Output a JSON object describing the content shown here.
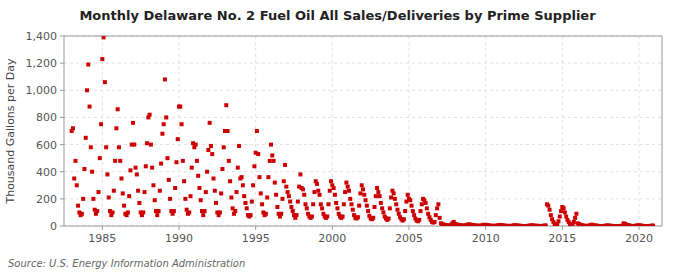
{
  "chart_data": {
    "type": "scatter",
    "title": "Monthly Delaware No. 2 Fuel Oil All Sales/Deliveries by Prime Supplier",
    "ylabel": "Thousand Gallons per Day",
    "annotations": [
      "Source: U.S. Energy Information Administration"
    ],
    "color": "#cc0000",
    "marker": "square",
    "grid": true,
    "xlim": [
      1982.5,
      2021.5
    ],
    "ylim": [
      0,
      1400
    ],
    "xticks": [
      1985,
      1990,
      1995,
      2000,
      2005,
      2010,
      2015,
      2020
    ],
    "yticks": [
      0,
      200,
      400,
      600,
      800,
      {
        "value": 1000,
        "label": "1,000"
      },
      {
        "value": 1200,
        "label": "1,200"
      },
      {
        "value": 1400,
        "label": "1,400"
      }
    ],
    "x": [
      1983.0,
      1983.083,
      1983.167,
      1983.25,
      1983.333,
      1983.417,
      1983.5,
      1983.583,
      1983.667,
      1983.75,
      1983.833,
      1983.917,
      1984.0,
      1984.083,
      1984.167,
      1984.25,
      1984.333,
      1984.417,
      1984.5,
      1984.583,
      1984.667,
      1984.75,
      1984.833,
      1984.917,
      1985.0,
      1985.083,
      1985.167,
      1985.25,
      1985.333,
      1985.417,
      1985.5,
      1985.583,
      1985.667,
      1985.75,
      1985.833,
      1985.917,
      1986.0,
      1986.083,
      1986.167,
      1986.25,
      1986.333,
      1986.417,
      1986.5,
      1986.583,
      1986.667,
      1986.75,
      1986.833,
      1986.917,
      1987.0,
      1987.083,
      1987.167,
      1987.25,
      1987.333,
      1987.417,
      1987.5,
      1987.583,
      1987.667,
      1987.75,
      1987.833,
      1987.917,
      1988.0,
      1988.083,
      1988.167,
      1988.25,
      1988.333,
      1988.417,
      1988.5,
      1988.583,
      1988.667,
      1988.75,
      1988.833,
      1988.917,
      1989.0,
      1989.083,
      1989.167,
      1989.25,
      1989.333,
      1989.417,
      1989.5,
      1989.583,
      1989.667,
      1989.75,
      1989.833,
      1989.917,
      1990.0,
      1990.083,
      1990.167,
      1990.25,
      1990.333,
      1990.417,
      1990.5,
      1990.583,
      1990.667,
      1990.75,
      1990.833,
      1990.917,
      1991.0,
      1991.083,
      1991.167,
      1991.25,
      1991.333,
      1991.417,
      1991.5,
      1991.583,
      1991.667,
      1991.75,
      1991.833,
      1991.917,
      1992.0,
      1992.083,
      1992.167,
      1992.25,
      1992.333,
      1992.417,
      1992.5,
      1992.583,
      1992.667,
      1992.75,
      1992.833,
      1992.917,
      1993.0,
      1993.083,
      1993.167,
      1993.25,
      1993.333,
      1993.417,
      1993.5,
      1993.583,
      1993.667,
      1993.75,
      1993.833,
      1993.917,
      1994.0,
      1994.083,
      1994.167,
      1994.25,
      1994.333,
      1994.417,
      1994.5,
      1994.583,
      1994.667,
      1994.75,
      1994.833,
      1994.917,
      1995.0,
      1995.083,
      1995.167,
      1995.25,
      1995.333,
      1995.417,
      1995.5,
      1995.583,
      1995.667,
      1995.75,
      1995.833,
      1995.917,
      1996.0,
      1996.083,
      1996.167,
      1996.25,
      1996.333,
      1996.417,
      1996.5,
      1996.583,
      1996.667,
      1996.75,
      1996.833,
      1996.917,
      1997.0,
      1997.083,
      1997.167,
      1997.25,
      1997.333,
      1997.417,
      1997.5,
      1997.583,
      1997.667,
      1997.75,
      1997.833,
      1997.917,
      1998.0,
      1998.083,
      1998.167,
      1998.25,
      1998.333,
      1998.417,
      1998.5,
      1998.583,
      1998.667,
      1998.75,
      1998.833,
      1998.917,
      1999.0,
      1999.083,
      1999.167,
      1999.25,
      1999.333,
      1999.417,
      1999.5,
      1999.583,
      1999.667,
      1999.75,
      1999.833,
      1999.917,
      2000.0,
      2000.083,
      2000.167,
      2000.25,
      2000.333,
      2000.417,
      2000.5,
      2000.583,
      2000.667,
      2000.75,
      2000.833,
      2000.917,
      2001.0,
      2001.083,
      2001.167,
      2001.25,
      2001.333,
      2001.417,
      2001.5,
      2001.583,
      2001.667,
      2001.75,
      2001.833,
      2001.917,
      2002.0,
      2002.083,
      2002.167,
      2002.25,
      2002.333,
      2002.417,
      2002.5,
      2002.583,
      2002.667,
      2002.75,
      2002.833,
      2002.917,
      2003.0,
      2003.083,
      2003.167,
      2003.25,
      2003.333,
      2003.417,
      2003.5,
      2003.583,
      2003.667,
      2003.75,
      2003.833,
      2003.917,
      2004.0,
      2004.083,
      2004.167,
      2004.25,
      2004.333,
      2004.417,
      2004.5,
      2004.583,
      2004.667,
      2004.75,
      2004.833,
      2004.917,
      2005.0,
      2005.083,
      2005.167,
      2005.25,
      2005.333,
      2005.417,
      2005.5,
      2005.583,
      2005.667,
      2005.75,
      2005.833,
      2005.917,
      2006.0,
      2006.083,
      2006.167,
      2006.25,
      2006.333,
      2006.417,
      2006.5,
      2006.583,
      2006.667,
      2006.75,
      2006.833,
      2006.917,
      2007.0,
      2007.083,
      2007.167,
      2007.25,
      2007.333,
      2007.417,
      2007.5,
      2007.583,
      2007.667,
      2007.75,
      2007.833,
      2007.917,
      2008.0,
      2008.083,
      2008.167,
      2008.25,
      2008.333,
      2008.417,
      2008.5,
      2008.583,
      2008.667,
      2008.75,
      2008.833,
      2008.917,
      2009.0,
      2009.083,
      2009.167,
      2009.25,
      2009.333,
      2009.417,
      2009.5,
      2009.583,
      2009.667,
      2009.75,
      2009.833,
      2009.917,
      2010.0,
      2010.083,
      2010.167,
      2010.25,
      2010.333,
      2010.417,
      2010.5,
      2010.583,
      2010.667,
      2010.75,
      2010.833,
      2010.917,
      2011.0,
      2011.083,
      2011.167,
      2011.25,
      2011.333,
      2011.417,
      2011.5,
      2011.583,
      2011.667,
      2011.75,
      2011.833,
      2011.917,
      2012.0,
      2012.083,
      2012.167,
      2012.25,
      2012.333,
      2012.417,
      2012.5,
      2012.583,
      2012.667,
      2012.75,
      2012.833,
      2012.917,
      2013.0,
      2013.083,
      2013.167,
      2013.25,
      2013.333,
      2013.417,
      2013.5,
      2013.583,
      2013.667,
      2013.75,
      2013.833,
      2013.917,
      2014.0,
      2014.083,
      2014.167,
      2014.25,
      2014.333,
      2014.417,
      2014.5,
      2014.583,
      2014.667,
      2014.75,
      2014.833,
      2014.917,
      2015.0,
      2015.083,
      2015.167,
      2015.25,
      2015.333,
      2015.417,
      2015.5,
      2015.583,
      2015.667,
      2015.75,
      2015.833,
      2015.917,
      2016.0,
      2016.083,
      2016.167,
      2016.25,
      2016.333,
      2016.417,
      2016.5,
      2016.583,
      2016.667,
      2016.75,
      2016.833,
      2016.917,
      2017.0,
      2017.083,
      2017.167,
      2017.25,
      2017.333,
      2017.417,
      2017.5,
      2017.583,
      2017.667,
      2017.75,
      2017.833,
      2017.917,
      2018.0,
      2018.083,
      2018.167,
      2018.25,
      2018.333,
      2018.417,
      2018.5,
      2018.583,
      2018.667,
      2018.75,
      2018.833,
      2018.917,
      2019.0,
      2019.083,
      2019.167,
      2019.25,
      2019.333,
      2019.417,
      2019.5,
      2019.583,
      2019.667,
      2019.75,
      2019.833,
      2019.917,
      2020.0,
      2020.083,
      2020.167,
      2020.25,
      2020.333,
      2020.417,
      2020.5,
      2020.583,
      2020.667,
      2020.75,
      2020.833,
      2020.917
    ],
    "values": [
      700,
      720,
      350,
      480,
      300,
      150,
      100,
      80,
      90,
      200,
      420,
      650,
      1000,
      1190,
      880,
      580,
      400,
      200,
      120,
      90,
      110,
      250,
      500,
      750,
      1230,
      1390,
      1060,
      580,
      380,
      210,
      110,
      80,
      100,
      260,
      480,
      720,
      860,
      580,
      480,
      350,
      240,
      150,
      90,
      80,
      100,
      220,
      410,
      600,
      760,
      600,
      430,
      380,
      260,
      170,
      100,
      80,
      100,
      250,
      440,
      610,
      800,
      820,
      600,
      430,
      300,
      190,
      110,
      80,
      110,
      260,
      460,
      680,
      750,
      1080,
      800,
      500,
      340,
      200,
      110,
      90,
      110,
      280,
      470,
      640,
      880,
      880,
      750,
      480,
      330,
      200,
      120,
      90,
      100,
      220,
      430,
      610,
      580,
      600,
      480,
      370,
      280,
      190,
      110,
      80,
      110,
      250,
      400,
      560,
      760,
      590,
      530,
      350,
      260,
      170,
      100,
      80,
      100,
      240,
      420,
      580,
      700,
      890,
      700,
      480,
      330,
      210,
      130,
      90,
      110,
      250,
      430,
      590,
      350,
      360,
      300,
      220,
      170,
      130,
      80,
      70,
      80,
      180,
      300,
      440,
      540,
      700,
      530,
      360,
      240,
      160,
      100,
      80,
      90,
      210,
      360,
      480,
      600,
      520,
      480,
      320,
      230,
      140,
      90,
      70,
      90,
      200,
      330,
      450,
      290,
      250,
      220,
      180,
      140,
      110,
      80,
      60,
      80,
      180,
      290,
      380,
      280,
      270,
      230,
      160,
      130,
      90,
      70,
      60,
      70,
      160,
      250,
      330,
      310,
      260,
      230,
      160,
      130,
      90,
      70,
      60,
      70,
      160,
      260,
      330,
      300,
      280,
      230,
      170,
      130,
      90,
      70,
      60,
      70,
      160,
      250,
      320,
      290,
      260,
      200,
      160,
      120,
      80,
      60,
      55,
      65,
      150,
      240,
      300,
      270,
      230,
      190,
      150,
      110,
      75,
      55,
      50,
      60,
      140,
      220,
      280,
      250,
      220,
      170,
      130,
      100,
      70,
      55,
      45,
      55,
      130,
      210,
      260,
      240,
      200,
      160,
      120,
      90,
      65,
      50,
      40,
      50,
      110,
      180,
      230,
      200,
      190,
      150,
      110,
      80,
      55,
      40,
      35,
      45,
      110,
      160,
      200,
      190,
      170,
      130,
      90,
      65,
      45,
      30,
      25,
      30,
      80,
      130,
      160,
      60,
      20,
      15,
      10,
      8,
      5,
      3,
      3,
      4,
      10,
      20,
      30,
      15,
      12,
      10,
      7,
      5,
      4,
      3,
      2,
      3,
      6,
      10,
      12,
      10,
      8,
      6,
      4,
      3,
      2,
      2,
      1,
      2,
      4,
      7,
      9,
      8,
      6,
      4,
      3,
      2,
      1,
      1,
      1,
      1,
      3,
      5,
      7,
      6,
      5,
      3,
      2,
      1,
      1,
      1,
      0,
      1,
      2,
      4,
      5,
      4,
      3,
      2,
      1,
      1,
      0,
      0,
      0,
      0,
      1,
      2,
      3,
      5,
      4,
      2,
      2,
      1,
      1,
      0,
      0,
      0,
      1,
      3,
      4,
      160,
      150,
      120,
      80,
      50,
      30,
      15,
      10,
      12,
      35,
      70,
      110,
      140,
      130,
      100,
      70,
      45,
      28,
      15,
      10,
      12,
      30,
      60,
      90,
      20,
      15,
      10,
      6,
      4,
      2,
      1,
      0,
      1,
      3,
      6,
      10,
      5,
      4,
      3,
      2,
      1,
      0,
      0,
      0,
      0,
      1,
      2,
      4,
      3,
      2,
      1,
      1,
      0,
      0,
      0,
      0,
      0,
      0,
      1,
      2,
      20,
      15,
      10,
      6,
      4,
      2,
      1,
      0,
      0,
      1,
      3,
      5,
      4,
      3,
      2,
      1,
      0,
      0,
      0,
      0,
      0,
      1,
      2,
      3
    ]
  }
}
